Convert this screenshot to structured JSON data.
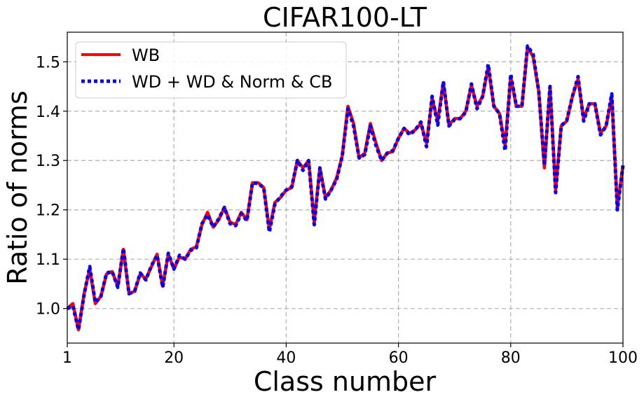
{
  "chart_data": {
    "type": "line",
    "title": "CIFAR100-LT",
    "xlabel": "Class number",
    "ylabel": "Ratio of norms",
    "xlim": [
      1,
      100
    ],
    "ylim": [
      0.93,
      1.56
    ],
    "xticks": [
      1,
      20,
      40,
      60,
      80,
      100
    ],
    "yticks": [
      1.0,
      1.1,
      1.2,
      1.3,
      1.4,
      1.5
    ],
    "xtick_labels": [
      "1",
      "20",
      "40",
      "60",
      "80",
      "100"
    ],
    "ytick_labels": [
      "1.0",
      "1.1",
      "1.2",
      "1.3",
      "1.4",
      "1.5"
    ],
    "grid": true,
    "legend_position": "top-left",
    "x": [
      1,
      2,
      3,
      4,
      5,
      6,
      7,
      8,
      9,
      10,
      11,
      12,
      13,
      14,
      15,
      16,
      17,
      18,
      19,
      20,
      21,
      22,
      23,
      24,
      25,
      26,
      27,
      28,
      29,
      30,
      31,
      32,
      33,
      34,
      35,
      36,
      37,
      38,
      39,
      40,
      41,
      42,
      43,
      44,
      45,
      46,
      47,
      48,
      49,
      50,
      51,
      52,
      53,
      54,
      55,
      56,
      57,
      58,
      59,
      60,
      61,
      62,
      63,
      64,
      65,
      66,
      67,
      68,
      69,
      70,
      71,
      72,
      73,
      74,
      75,
      76,
      77,
      78,
      79,
      80,
      81,
      82,
      83,
      84,
      85,
      86,
      87,
      88,
      89,
      90,
      91,
      92,
      93,
      94,
      95,
      96,
      97,
      98,
      99,
      100
    ],
    "series": [
      {
        "name": "WB",
        "color": "#ff0000",
        "style": "solid",
        "values": [
          1.0,
          1.01,
          0.957,
          1.03,
          1.08,
          1.01,
          1.025,
          1.07,
          1.075,
          1.045,
          1.12,
          1.03,
          1.035,
          1.07,
          1.06,
          1.085,
          1.11,
          1.045,
          1.11,
          1.08,
          1.105,
          1.1,
          1.12,
          1.125,
          1.17,
          1.195,
          1.165,
          1.18,
          1.205,
          1.175,
          1.17,
          1.195,
          1.18,
          1.255,
          1.255,
          1.245,
          1.16,
          1.215,
          1.225,
          1.24,
          1.245,
          1.3,
          1.285,
          1.3,
          1.175,
          1.285,
          1.225,
          1.24,
          1.265,
          1.31,
          1.41,
          1.375,
          1.305,
          1.315,
          1.375,
          1.335,
          1.3,
          1.315,
          1.318,
          1.345,
          1.365,
          1.355,
          1.362,
          1.375,
          1.335,
          1.425,
          1.38,
          1.458,
          1.372,
          1.385,
          1.385,
          1.4,
          1.452,
          1.41,
          1.43,
          1.49,
          1.41,
          1.395,
          1.33,
          1.47,
          1.41,
          1.41,
          1.53,
          1.51,
          1.44,
          1.285,
          1.45,
          1.24,
          1.37,
          1.38,
          1.43,
          1.465,
          1.385,
          1.415,
          1.415,
          1.355,
          1.37,
          1.43,
          1.205,
          1.29
        ]
      },
      {
        "name": "WD + WD & Norm & CB",
        "color": "#0000ff",
        "style": "dotted",
        "values": [
          1.0,
          1.005,
          0.957,
          1.028,
          1.085,
          1.012,
          1.025,
          1.072,
          1.075,
          1.043,
          1.122,
          1.03,
          1.035,
          1.072,
          1.058,
          1.087,
          1.108,
          1.043,
          1.112,
          1.08,
          1.108,
          1.1,
          1.118,
          1.123,
          1.172,
          1.19,
          1.165,
          1.182,
          1.205,
          1.172,
          1.168,
          1.192,
          1.178,
          1.255,
          1.253,
          1.245,
          1.155,
          1.212,
          1.227,
          1.24,
          1.247,
          1.3,
          1.28,
          1.3,
          1.17,
          1.285,
          1.222,
          1.24,
          1.262,
          1.31,
          1.405,
          1.37,
          1.305,
          1.312,
          1.37,
          1.33,
          1.3,
          1.315,
          1.32,
          1.345,
          1.365,
          1.352,
          1.362,
          1.378,
          1.328,
          1.43,
          1.372,
          1.46,
          1.37,
          1.383,
          1.385,
          1.398,
          1.455,
          1.405,
          1.43,
          1.495,
          1.41,
          1.395,
          1.32,
          1.475,
          1.41,
          1.41,
          1.532,
          1.515,
          1.44,
          1.29,
          1.45,
          1.235,
          1.37,
          1.382,
          1.43,
          1.47,
          1.38,
          1.415,
          1.415,
          1.352,
          1.37,
          1.435,
          1.2,
          1.29
        ]
      }
    ]
  }
}
